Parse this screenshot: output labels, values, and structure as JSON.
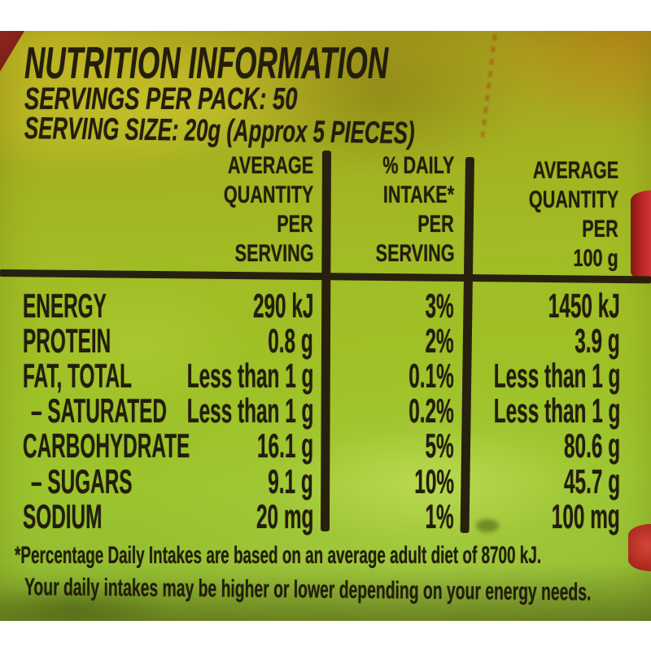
{
  "photo": {
    "title": "NUTRITION INFORMATION",
    "servings_per_pack": "SERVINGS PER PACK: 50",
    "serving_size": "SERVING SIZE: 20g (Approx 5 PIECES)",
    "table": {
      "columns": [
        {
          "lines": [
            "AVERAGE",
            "QUANTITY",
            "PER",
            "SERVING"
          ]
        },
        {
          "lines": [
            "% DAILY",
            "INTAKE*",
            "PER",
            "SERVING"
          ]
        },
        {
          "lines": [
            "AVERAGE",
            "QUANTITY",
            "PER",
            "100 g"
          ]
        }
      ],
      "rows": [
        {
          "name": "ENERGY",
          "per_serving": "290 kJ",
          "daily_intake": "3%",
          "per_100g": "1450 kJ"
        },
        {
          "name": "PROTEIN",
          "per_serving": "0.8 g",
          "daily_intake": "2%",
          "per_100g": "3.9 g"
        },
        {
          "name": "FAT, TOTAL",
          "per_serving": "Less than 1 g",
          "daily_intake": "0.1%",
          "per_100g": "Less than 1 g"
        },
        {
          "name": "– SATURATED",
          "per_serving": "Less than 1 g",
          "daily_intake": "0.2%",
          "per_100g": "Less than 1 g"
        },
        {
          "name": "CARBOHYDRATE",
          "per_serving": "16.1 g",
          "daily_intake": "5%",
          "per_100g": "80.6 g"
        },
        {
          "name": "– SUGARS",
          "per_serving": "9.1 g",
          "daily_intake": "10%",
          "per_100g": "45.7 g"
        },
        {
          "name": "SODIUM",
          "per_serving": "20 mg",
          "daily_intake": "1%",
          "per_100g": "100 mg"
        }
      ]
    },
    "footnote": {
      "line1": "*Percentage Daily Intakes are based on an average adult diet of 8700 kJ.",
      "line2": "Your daily intakes may be higher or lower depending on your energy needs."
    },
    "colors": {
      "package_green": "#a0c125",
      "package_olive": "#a8a41f",
      "ink": "#231d0b",
      "accent_red": "#c1272d"
    }
  }
}
